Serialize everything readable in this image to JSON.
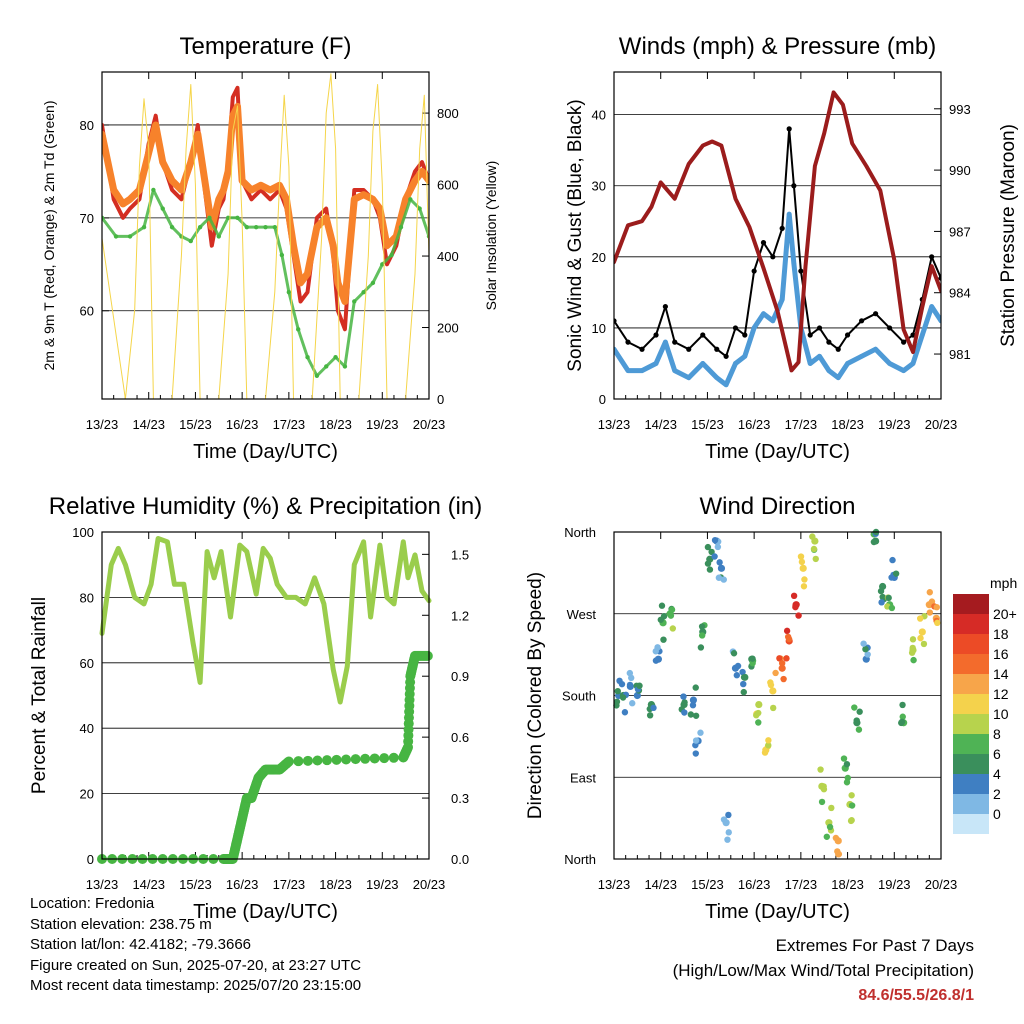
{
  "footer": {
    "location": "Location: Fredonia",
    "elevation": "Station elevation: 238.75 m",
    "latlon": "Station lat/lon: 42.4182; -79.3666",
    "created": "Figure created on Sun, 2025-07-20, at 23:27 UTC",
    "recent": "Most recent data timestamp: 2025/07/20 23:15:00",
    "extremes_title": "Extremes For Past 7 Days",
    "extremes_subtitle": "(High/Low/Max Wind/Total Precipitation)",
    "extremes_values": "84.6/55.5/26.8/1"
  },
  "colors": {
    "temp_red": "#d42e22",
    "temp_orange": "#f7822b",
    "dewpoint_green": "#47b542",
    "insolation_yellow": "#f5d54a",
    "wind_blue": "#4e9ad6",
    "gust_black": "#000000",
    "pressure_maroon": "#9b1c1c",
    "rh_lightgreen": "#9acd4c",
    "precip_green": "#47b542"
  },
  "chart_data": [
    {
      "id": "temperature",
      "type": "line",
      "title": "Temperature (F)",
      "xlabel": "Time (Day/UTC)",
      "ylabel": "2m & 9m T (Red, Orange) & 2m Td (Green)",
      "y2label": "Solar Insolation (Yellow)",
      "xticks": [
        "13/23",
        "14/23",
        "15/23",
        "16/23",
        "17/23",
        "18/23",
        "19/23",
        "20/23"
      ],
      "xlim": [
        0,
        7
      ],
      "ylim": [
        50.5,
        85.7
      ],
      "yticks": [
        60,
        70,
        80
      ],
      "y2lim": [
        0,
        915
      ],
      "y2ticks": [
        0,
        200,
        400,
        600,
        800
      ],
      "grid": "horizontal",
      "series": [
        {
          "name": "2m T",
          "color": "#d42e22",
          "x": [
            0,
            0.25,
            0.45,
            0.6,
            0.8,
            1.0,
            1.15,
            1.3,
            1.5,
            1.7,
            1.9,
            2.05,
            2.2,
            2.35,
            2.5,
            2.6,
            2.7,
            2.8,
            2.9,
            3.0,
            3.2,
            3.4,
            3.6,
            3.8,
            3.95,
            4.1,
            4.25,
            4.4,
            4.6,
            4.8,
            4.95,
            5.05,
            5.2,
            5.4,
            5.6,
            5.8,
            5.95,
            6.1,
            6.3,
            6.5,
            6.7,
            6.85,
            7.0
          ],
          "values": [
            80,
            72,
            70,
            71,
            72,
            78,
            81,
            76,
            73,
            72,
            76,
            80,
            73,
            67,
            71,
            72,
            76,
            83,
            84,
            74,
            72,
            73,
            72,
            73,
            71,
            66,
            61,
            62,
            70,
            71,
            66,
            60,
            58,
            73,
            73,
            72,
            70,
            65,
            67,
            72,
            75,
            76,
            74
          ]
        },
        {
          "name": "9m T",
          "color": "#f7822b",
          "x": [
            0,
            0.25,
            0.45,
            0.6,
            0.8,
            1.0,
            1.15,
            1.3,
            1.5,
            1.7,
            1.9,
            2.05,
            2.2,
            2.35,
            2.5,
            2.6,
            2.7,
            2.8,
            2.9,
            3.0,
            3.2,
            3.4,
            3.6,
            3.8,
            3.95,
            4.1,
            4.25,
            4.4,
            4.6,
            4.8,
            4.95,
            5.05,
            5.2,
            5.4,
            5.6,
            5.8,
            5.95,
            6.1,
            6.3,
            6.5,
            6.7,
            6.85,
            7.0
          ],
          "values": [
            79,
            73,
            71.5,
            72,
            73,
            77,
            80,
            76,
            74,
            73,
            76,
            79,
            74,
            69,
            72,
            73,
            75,
            81,
            82,
            74,
            73,
            73.5,
            73,
            73.5,
            72,
            67,
            63,
            64,
            69,
            70,
            67,
            63,
            61,
            72,
            72.5,
            72,
            71,
            67,
            68,
            72,
            74,
            75,
            74
          ]
        },
        {
          "name": "2m Td",
          "color": "#47b542",
          "x": [
            0,
            0.3,
            0.6,
            0.9,
            1.1,
            1.3,
            1.5,
            1.7,
            1.9,
            2.1,
            2.3,
            2.5,
            2.7,
            2.9,
            3.1,
            3.3,
            3.5,
            3.7,
            3.85,
            4.0,
            4.2,
            4.4,
            4.6,
            4.8,
            5.0,
            5.2,
            5.4,
            5.6,
            5.8,
            6.0,
            6.2,
            6.4,
            6.6,
            6.8,
            7.0
          ],
          "values": [
            70,
            68,
            68,
            69,
            73,
            71,
            69,
            68,
            67.5,
            69,
            70,
            68,
            70,
            70,
            69,
            69,
            69,
            69,
            66,
            62,
            58,
            55,
            53,
            54,
            55,
            54,
            61,
            62,
            63,
            65,
            66,
            69,
            72,
            71,
            68
          ]
        },
        {
          "name": "Solar Insolation",
          "color": "#f5d54a",
          "axis": "y2",
          "x": [
            0,
            0.5,
            0.7,
            0.8,
            0.9,
            1.0,
            1.1,
            1.5,
            1.7,
            1.8,
            1.9,
            2.0,
            2.1,
            2.5,
            2.7,
            2.8,
            2.9,
            3.0,
            3.1,
            3.5,
            3.7,
            3.8,
            3.9,
            4.0,
            4.1,
            4.5,
            4.7,
            4.8,
            4.9,
            5.0,
            5.1,
            5.5,
            5.7,
            5.8,
            5.9,
            6.0,
            6.1,
            6.5,
            6.7,
            6.8,
            6.9,
            7.0
          ],
          "values": [
            450,
            0,
            250,
            650,
            840,
            700,
            0,
            0,
            400,
            700,
            880,
            600,
            0,
            0,
            350,
            750,
            820,
            500,
            0,
            0,
            300,
            600,
            850,
            650,
            0,
            0,
            450,
            800,
            910,
            700,
            0,
            0,
            400,
            750,
            880,
            600,
            0,
            0,
            350,
            700,
            850,
            400
          ]
        }
      ]
    },
    {
      "id": "winds",
      "type": "line",
      "title": "Winds (mph) & Pressure (mb)",
      "xlabel": "Time (Day/UTC)",
      "ylabel": "Sonic Wind & Gust (Blue, Black)",
      "y2label": "Station Pressure (Maroon)",
      "xticks": [
        "13/23",
        "14/23",
        "15/23",
        "16/23",
        "17/23",
        "18/23",
        "19/23",
        "20/23"
      ],
      "xlim": [
        0,
        7
      ],
      "ylim": [
        0,
        46
      ],
      "yticks": [
        0,
        10,
        20,
        30,
        40
      ],
      "y2lim": [
        978.8,
        994.8
      ],
      "y2ticks": [
        981,
        984,
        987,
        990,
        993
      ],
      "grid": "horizontal",
      "series": [
        {
          "name": "Gust",
          "color": "#000000",
          "x": [
            0,
            0.3,
            0.6,
            0.9,
            1.1,
            1.3,
            1.6,
            1.9,
            2.2,
            2.4,
            2.6,
            2.8,
            3.0,
            3.2,
            3.4,
            3.6,
            3.75,
            3.85,
            4.0,
            4.2,
            4.4,
            4.6,
            4.8,
            5.0,
            5.3,
            5.6,
            5.9,
            6.2,
            6.4,
            6.6,
            6.8,
            7.0
          ],
          "values": [
            11,
            8,
            7,
            9,
            13,
            8,
            7,
            9,
            7,
            6,
            10,
            9,
            18,
            22,
            20,
            24,
            38,
            30,
            18,
            9,
            10,
            8,
            7,
            9,
            11,
            12,
            10,
            8,
            9,
            14,
            20,
            17
          ]
        },
        {
          "name": "Sonic Wind",
          "color": "#4e9ad6",
          "x": [
            0,
            0.3,
            0.6,
            0.9,
            1.1,
            1.3,
            1.6,
            1.9,
            2.2,
            2.4,
            2.6,
            2.8,
            3.0,
            3.2,
            3.4,
            3.6,
            3.75,
            3.85,
            4.0,
            4.2,
            4.4,
            4.6,
            4.8,
            5.0,
            5.3,
            5.6,
            5.9,
            6.2,
            6.4,
            6.6,
            6.8,
            7.0
          ],
          "values": [
            7,
            4,
            4,
            5,
            8,
            4,
            3,
            5,
            3,
            2,
            5,
            6,
            10,
            12,
            11,
            14,
            26,
            19,
            10,
            5,
            6,
            4,
            3,
            5,
            6,
            7,
            5,
            4,
            5,
            9,
            13,
            11
          ]
        },
        {
          "name": "Station Pressure",
          "color": "#9b1c1c",
          "axis": "y2",
          "x": [
            0,
            0.3,
            0.6,
            0.8,
            1.0,
            1.3,
            1.6,
            1.9,
            2.1,
            2.3,
            2.6,
            2.9,
            3.2,
            3.5,
            3.8,
            3.95,
            4.1,
            4.3,
            4.5,
            4.7,
            4.9,
            5.1,
            5.4,
            5.7,
            6.0,
            6.2,
            6.4,
            6.6,
            6.8,
            7.0
          ],
          "values": [
            985.5,
            987.3,
            987.5,
            988.2,
            989.4,
            988.6,
            990.3,
            991.2,
            991.4,
            991.2,
            988.6,
            987.2,
            985.2,
            983.1,
            980.2,
            980.6,
            985.3,
            990.2,
            991.8,
            993.8,
            993.2,
            991.3,
            990.2,
            989.0,
            985.6,
            982.2,
            981.1,
            983.3,
            985.3,
            984.1
          ]
        }
      ]
    },
    {
      "id": "humidity",
      "type": "line",
      "title": "Relative Humidity (%) & Precipitation (in)",
      "xlabel": "Time (Day/UTC)",
      "ylabel": "Percent & Total Rainfall",
      "xticks": [
        "13/23",
        "14/23",
        "15/23",
        "16/23",
        "17/23",
        "18/23",
        "19/23",
        "20/23"
      ],
      "xlim": [
        0,
        7
      ],
      "ylim": [
        0,
        100
      ],
      "yticks": [
        0,
        20,
        40,
        60,
        80,
        100
      ],
      "y2lim": [
        0,
        1.61
      ],
      "y2ticks": [
        "0.0",
        "0.3",
        "0.6",
        "0.9",
        "1.2",
        "1.5"
      ],
      "grid": "horizontal",
      "series": [
        {
          "name": "Relative Humidity",
          "color": "#9acd4c",
          "x": [
            0,
            0.2,
            0.35,
            0.5,
            0.7,
            0.9,
            1.05,
            1.2,
            1.4,
            1.55,
            1.75,
            1.95,
            2.1,
            2.25,
            2.4,
            2.55,
            2.75,
            2.95,
            3.1,
            3.3,
            3.45,
            3.6,
            3.75,
            3.95,
            4.15,
            4.35,
            4.55,
            4.75,
            4.95,
            5.1,
            5.25,
            5.4,
            5.6,
            5.75,
            5.95,
            6.1,
            6.25,
            6.45,
            6.55,
            6.7,
            6.85,
            7.0
          ],
          "values": [
            69,
            90,
            95,
            90,
            80,
            78,
            84,
            98,
            97,
            84,
            84,
            66,
            54,
            94,
            86,
            94,
            74,
            96,
            94,
            81,
            95,
            92,
            84,
            80,
            80,
            78,
            86,
            78,
            58,
            48,
            59,
            90,
            97,
            74,
            96,
            80,
            78,
            97,
            86,
            93,
            82,
            79
          ]
        },
        {
          "name": "Total Precipitation",
          "color": "#47b542",
          "axis": "y2",
          "x": [
            0,
            2.6,
            2.8,
            2.9,
            3.0,
            3.1,
            3.2,
            3.35,
            3.5,
            3.8,
            4.0,
            6.45,
            6.55,
            6.6,
            6.7,
            7.0
          ],
          "values": [
            0,
            0,
            0,
            0.1,
            0.2,
            0.3,
            0.3,
            0.4,
            0.44,
            0.44,
            0.48,
            0.5,
            0.55,
            0.9,
            1.0,
            1.0
          ]
        }
      ]
    },
    {
      "id": "direction",
      "type": "scatter",
      "title": "Wind Direction",
      "xlabel": "Time (Day/UTC)",
      "ylabel": "Direction (Colored By Speed)",
      "xticks": [
        "13/23",
        "14/23",
        "15/23",
        "16/23",
        "17/23",
        "18/23",
        "19/23",
        "20/23"
      ],
      "xlim": [
        0,
        7
      ],
      "yticks": [
        "North",
        "East",
        "South",
        "West",
        "North"
      ],
      "ylim": [
        0,
        360
      ],
      "grid": "horizontal",
      "colorbar": {
        "unit": "mph",
        "labels": [
          "20+",
          "18",
          "16",
          "14",
          "12",
          "10",
          "8",
          "6",
          "4",
          "2",
          "0"
        ],
        "colors": [
          "#a51b1f",
          "#d62b26",
          "#ec4b26",
          "#f36b2c",
          "#f7a54a",
          "#f4d24c",
          "#b7d34d",
          "#4fb355",
          "#3a8f5c",
          "#3f7fc2",
          "#7fb8e4",
          "#c8e6f8"
        ]
      },
      "x": [
        0.1,
        0.2,
        0.35,
        0.5,
        0.8,
        0.95,
        1.05,
        1.2,
        1.5,
        1.7,
        1.8,
        1.9,
        2.05,
        2.2,
        2.3,
        2.4,
        2.6,
        2.8,
        2.95,
        3.1,
        3.25,
        3.4,
        3.6,
        3.75,
        3.9,
        4.05,
        4.3,
        4.45,
        4.6,
        4.8,
        4.95,
        5.05,
        5.2,
        5.4,
        5.6,
        5.75,
        5.9,
        6.0,
        6.2,
        6.4,
        6.6,
        6.75,
        6.9
      ],
      "y": [
        180,
        180,
        190,
        180,
        170,
        220,
        260,
        270,
        170,
        175,
        130,
        250,
        330,
        350,
        320,
        40,
        210,
        200,
        220,
        170,
        120,
        185,
        210,
        240,
        280,
        320,
        350,
        80,
        40,
        20,
        100,
        60,
        150,
        220,
        350,
        300,
        280,
        310,
        150,
        230,
        250,
        280,
        265
      ],
      "speed": [
        4,
        5,
        3,
        4,
        6,
        3,
        7,
        8,
        5,
        4,
        3,
        6,
        5,
        3,
        4,
        2,
        4,
        5,
        6,
        10,
        12,
        12,
        16,
        18,
        20,
        11,
        9,
        10,
        9,
        13,
        7,
        9,
        6,
        4,
        6,
        5,
        8,
        4,
        7,
        10,
        12,
        13,
        14
      ]
    }
  ]
}
